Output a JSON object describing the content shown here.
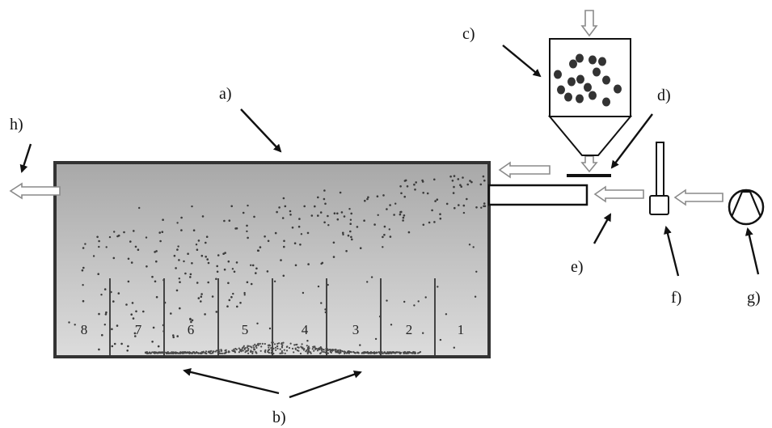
{
  "figure": {
    "labels": {
      "a": "a)",
      "b": "b)",
      "c": "c)",
      "d": "d)",
      "e": "e)",
      "f": "f)",
      "g": "g)",
      "h": "h)"
    },
    "compartments": [
      "8",
      "7",
      "6",
      "5",
      "4",
      "3",
      "2",
      "1"
    ],
    "colors": {
      "line": "#111111",
      "tank_fill_top": "#a9a9a9",
      "tank_fill_bottom": "#d8d8d8",
      "tank_border": "#333333",
      "particle": "#3a3a3a",
      "hopper_particle": "#333333",
      "flow_arrow_stroke": "#8a8a8a"
    }
  }
}
